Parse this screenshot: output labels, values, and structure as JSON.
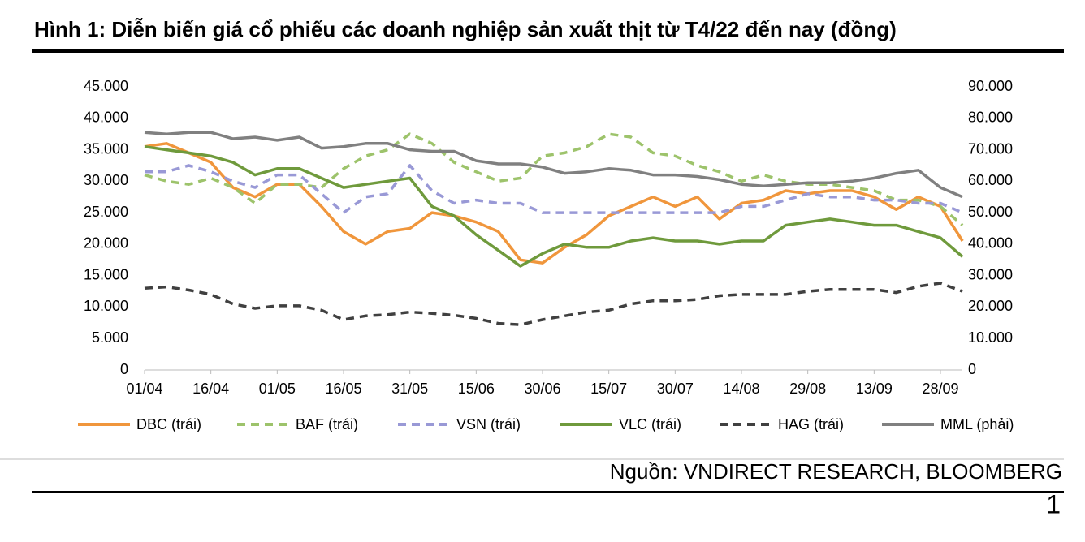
{
  "header": {
    "title": "Hình 1:  Diễn biến giá cổ phiếu các doanh nghiệp sản xuất thịt từ T4/22 đến nay (đồng)"
  },
  "chart_data": {
    "type": "line",
    "categories": [
      "01/04",
      null,
      null,
      "16/04",
      null,
      null,
      "01/05",
      null,
      null,
      "16/05",
      null,
      null,
      "31/05",
      null,
      null,
      "15/06",
      null,
      null,
      "30/06",
      null,
      null,
      "15/07",
      null,
      null,
      "30/07",
      null,
      null,
      "14/08",
      null,
      null,
      "29/08",
      null,
      null,
      "13/09",
      null,
      null,
      "28/09",
      null
    ],
    "series": [
      {
        "name": "DBC (trái)",
        "color": "#f0963c",
        "dash": false,
        "values": [
          35500,
          36000,
          34500,
          33000,
          29000,
          27500,
          29500,
          29500,
          26000,
          22000,
          20000,
          22000,
          22500,
          25000,
          24500,
          23500,
          22000,
          17500,
          17000,
          19500,
          21500,
          24500,
          26000,
          27500,
          26000,
          27500,
          24000,
          26500,
          27000,
          28500,
          28000,
          28500,
          28500,
          27500,
          25500,
          27500,
          26000,
          20500
        ]
      },
      {
        "name": "BAF (trái)",
        "color": "#9dc36b",
        "dash": true,
        "values": [
          31000,
          30000,
          29500,
          30500,
          29000,
          26500,
          29500,
          29500,
          29000,
          32000,
          34000,
          35000,
          37500,
          36000,
          33000,
          31500,
          30000,
          30500,
          34000,
          34500,
          35500,
          37500,
          37000,
          34500,
          34000,
          32500,
          31500,
          30000,
          31000,
          30000,
          29500,
          29500,
          29000,
          28500,
          27000,
          27000,
          26000,
          23000
        ]
      },
      {
        "name": "VSN (trái)",
        "color": "#9999d6",
        "dash": true,
        "values": [
          31500,
          31500,
          32500,
          31500,
          30000,
          29000,
          31000,
          31000,
          28000,
          25000,
          27500,
          28000,
          32500,
          28500,
          26500,
          27000,
          26500,
          26500,
          25000,
          25000,
          25000,
          25000,
          25000,
          25000,
          25000,
          25000,
          25000,
          26000,
          26000,
          27000,
          28000,
          27500,
          27500,
          27000,
          27000,
          26500,
          26500,
          25000
        ]
      },
      {
        "name": "VLC (trái)",
        "color": "#6f9a3c",
        "dash": false,
        "values": [
          35500,
          35000,
          34500,
          34000,
          33000,
          31000,
          32000,
          32000,
          30500,
          29000,
          29500,
          30000,
          30500,
          26000,
          24500,
          21500,
          19000,
          16500,
          18500,
          20000,
          19500,
          19500,
          20500,
          21000,
          20500,
          20500,
          20000,
          20500,
          20500,
          23000,
          23500,
          24000,
          23500,
          23000,
          23000,
          22000,
          21000,
          18000
        ]
      },
      {
        "name": "HAG (trái)",
        "color": "#404040",
        "dash": true,
        "values": [
          13000,
          13200,
          12700,
          12000,
          10500,
          9800,
          10200,
          10200,
          9500,
          8000,
          8600,
          8800,
          9200,
          9000,
          8700,
          8200,
          7400,
          7200,
          8000,
          8600,
          9200,
          9500,
          10500,
          11000,
          11000,
          11200,
          11800,
          12000,
          12000,
          12000,
          12500,
          12800,
          12800,
          12800,
          12300,
          13300,
          13800,
          12500
        ]
      },
      {
        "name": "MML (phải)",
        "color": "#808080",
        "dash": false,
        "axis": "y2",
        "values": [
          75500,
          75000,
          75500,
          75500,
          73500,
          74000,
          73000,
          74000,
          70500,
          71000,
          72000,
          72000,
          70000,
          69500,
          69500,
          66500,
          65500,
          65500,
          64500,
          62500,
          63000,
          64000,
          63500,
          62000,
          62000,
          61500,
          60500,
          59000,
          58500,
          59000,
          59500,
          59500,
          60000,
          61000,
          62500,
          63500,
          58000,
          55000
        ]
      }
    ],
    "ylim": [
      0,
      45000
    ],
    "yticks": [
      0,
      {
        "value": 5000,
        "label": "5.000"
      },
      {
        "value": 10000,
        "label": "10.000"
      },
      {
        "value": 15000,
        "label": "15.000"
      },
      {
        "value": 20000,
        "label": "20.000"
      },
      {
        "value": 25000,
        "label": "25.000"
      },
      {
        "value": 30000,
        "label": "30.000"
      },
      {
        "value": 35000,
        "label": "35.000"
      },
      {
        "value": 40000,
        "label": "40.000"
      },
      {
        "value": 45000,
        "label": "45.000"
      }
    ],
    "y2lim": [
      0,
      90000
    ],
    "y2ticks": [
      0,
      {
        "value": 10000,
        "label": "10.000"
      },
      {
        "value": 20000,
        "label": "20.000"
      },
      {
        "value": 30000,
        "label": "30.000"
      },
      {
        "value": 40000,
        "label": "40.000"
      },
      {
        "value": 50000,
        "label": "50.000"
      },
      {
        "value": 60000,
        "label": "60.000"
      },
      {
        "value": 70000,
        "label": "70.000"
      },
      {
        "value": 80000,
        "label": "80.000"
      },
      {
        "value": 90000,
        "label": "90.000"
      }
    ],
    "grid": false,
    "legend": "bottom"
  },
  "footer": {
    "source": "Nguồn: VNDIRECT RESEARCH, BLOOMBERG",
    "page": "1"
  }
}
